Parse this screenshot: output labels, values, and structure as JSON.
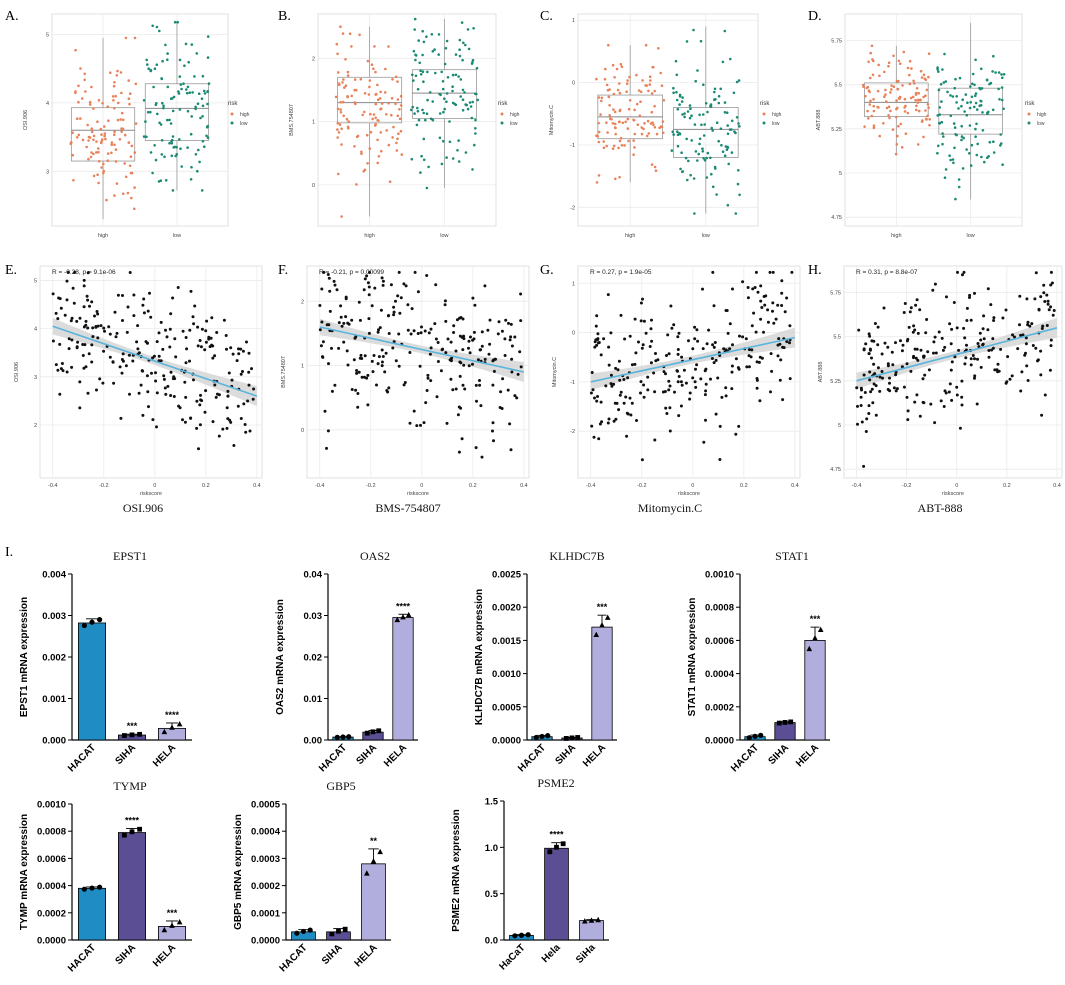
{
  "colors": {
    "high": "#E8825A",
    "low": "#1A8A74",
    "line": "#5AB4DC",
    "band": "#D3D3D3",
    "grid": "#EBEBEB",
    "bar1": "#1F8DC3",
    "bar2": "#5B4E94",
    "bar3": "#B1AEDD",
    "text": "#000000"
  },
  "legend": {
    "title": "risk",
    "high": "high",
    "low": "low"
  },
  "chart_data": [
    {
      "panel": "A.",
      "type": "box",
      "ylabel": "OSI.906",
      "categories": [
        "high",
        "low"
      ],
      "ylim": [
        2.2,
        5.3
      ],
      "yticks": [
        3,
        4,
        5
      ],
      "box": [
        {
          "q1": 3.15,
          "median": 3.6,
          "q3": 3.93,
          "wlo": 2.3,
          "whi": 4.95
        },
        {
          "q1": 3.45,
          "median": 3.92,
          "q3": 4.28,
          "wlo": 2.72,
          "whi": 5.18
        }
      ]
    },
    {
      "panel": "B.",
      "type": "box",
      "ylabel": "BMS.754807",
      "categories": [
        "high",
        "low"
      ],
      "ylim": [
        -0.65,
        2.7
      ],
      "yticks": [
        0,
        1,
        2
      ],
      "box": [
        {
          "q1": 0.98,
          "median": 1.3,
          "q3": 1.7,
          "wlo": -0.5,
          "whi": 2.5
        },
        {
          "q1": 1.05,
          "median": 1.45,
          "q3": 1.82,
          "wlo": -0.05,
          "whi": 2.62
        }
      ]
    },
    {
      "panel": "C.",
      "type": "box",
      "ylabel": "Mitomycin.C",
      "categories": [
        "high",
        "low"
      ],
      "ylim": [
        -2.3,
        1.1
      ],
      "yticks": [
        -2,
        -1,
        0,
        1
      ],
      "box": [
        {
          "q1": -0.9,
          "median": -0.55,
          "q3": -0.2,
          "wlo": -1.6,
          "whi": 0.6
        },
        {
          "q1": -1.2,
          "median": -0.75,
          "q3": -0.4,
          "wlo": -2.1,
          "whi": 0.9
        }
      ]
    },
    {
      "panel": "D.",
      "type": "box",
      "ylabel": "ABT.888",
      "categories": [
        "high",
        "low"
      ],
      "ylim": [
        4.7,
        5.9
      ],
      "yticks": [
        4.75,
        5.0,
        5.25,
        5.5,
        5.75
      ],
      "box": [
        {
          "q1": 5.32,
          "median": 5.4,
          "q3": 5.51,
          "wlo": 5.1,
          "whi": 5.72
        },
        {
          "q1": 5.22,
          "median": 5.33,
          "q3": 5.48,
          "wlo": 4.85,
          "whi": 5.85
        }
      ]
    },
    {
      "panel": "E.",
      "type": "scatter",
      "ylabel": "OSI.906",
      "xlabel": "riskscore",
      "stat": "R = -0.28, p = 9.1e-06",
      "title": "OSI.906",
      "xlim": [
        -0.45,
        0.42
      ],
      "ylim": [
        0.9,
        5.3
      ],
      "xticks": [
        -0.4,
        -0.2,
        0.0,
        0.2,
        0.4
      ],
      "yticks": [
        2,
        3,
        4,
        5
      ],
      "fit": [
        [
          -0.4,
          4.05
        ],
        [
          0.4,
          2.6
        ]
      ]
    },
    {
      "panel": "F.",
      "type": "scatter",
      "ylabel": "BMS.754807",
      "xlabel": "riskscore",
      "stat": "R = -0.21, p = 0.00099",
      "title": "BMS-754807",
      "xlim": [
        -0.45,
        0.42
      ],
      "ylim": [
        -0.75,
        2.55
      ],
      "xticks": [
        -0.4,
        -0.2,
        0.0,
        0.2,
        0.4
      ],
      "yticks": [
        0,
        1,
        2
      ],
      "fit": [
        [
          -0.4,
          1.6
        ],
        [
          0.4,
          0.9
        ]
      ]
    },
    {
      "panel": "G.",
      "type": "scatter",
      "ylabel": "Mitomycin.C",
      "xlabel": "riskscore",
      "stat": "R = 0.27, p = 1.9e-05",
      "title": "Mitomycin.C",
      "xlim": [
        -0.45,
        0.42
      ],
      "ylim": [
        -2.95,
        1.35
      ],
      "xticks": [
        -0.4,
        -0.2,
        0.0,
        0.2,
        0.4
      ],
      "yticks": [
        -2,
        -1,
        0,
        1
      ],
      "fit": [
        [
          -0.4,
          -1.0
        ],
        [
          0.4,
          -0.1
        ]
      ]
    },
    {
      "panel": "H.",
      "type": "scatter",
      "ylabel": "ABT.888",
      "xlabel": "riskscore",
      "stat": "R = 0.31, p = 8.8e-07",
      "title": "ABT-888",
      "xlim": [
        -0.45,
        0.42
      ],
      "ylim": [
        4.7,
        5.9
      ],
      "xticks": [
        -0.4,
        -0.2,
        0.0,
        0.2,
        0.4
      ],
      "yticks": [
        4.75,
        5.0,
        5.25,
        5.5,
        5.75
      ],
      "fit": [
        [
          -0.4,
          5.25
        ],
        [
          0.4,
          5.55
        ]
      ]
    },
    {
      "panel": "I.",
      "type": "bar",
      "title": "EPST1",
      "ylabel": "EPST1 mRNA expression",
      "categories": [
        "HACAT",
        "SIHA",
        "HELA"
      ],
      "values": [
        0.00282,
        0.00012,
        0.00028
      ],
      "err": [
        0.0001,
        2e-05,
        0.00013
      ],
      "sig": [
        "",
        "***",
        "****"
      ],
      "ylim": [
        0,
        0.004
      ],
      "yticks": [
        "0.000",
        "0.001",
        "0.002",
        "0.003",
        "0.004"
      ]
    },
    {
      "panel": "",
      "type": "bar",
      "title": "OAS2",
      "ylabel": "OAS2 mRNA expression",
      "categories": [
        "HACAT",
        "SIHA",
        "HELA"
      ],
      "values": [
        0.0007,
        0.0019,
        0.0295
      ],
      "err": [
        0.0001,
        0.0004,
        0.0008
      ],
      "sig": [
        "",
        "",
        "****"
      ],
      "ylim": [
        0,
        0.04
      ],
      "yticks": [
        "0.00",
        "0.01",
        "0.02",
        "0.03",
        "0.04"
      ]
    },
    {
      "panel": "",
      "type": "bar",
      "title": "KLHDC7B",
      "ylabel": "KLHDC7B mRNA expression",
      "categories": [
        "HACAT",
        "SIHA",
        "HELA"
      ],
      "values": [
        5e-05,
        3e-05,
        0.0017
      ],
      "err": [
        2e-05,
        1e-05,
        0.00018
      ],
      "sig": [
        "",
        "",
        "***"
      ],
      "ylim": [
        0,
        0.0025
      ],
      "yticks": [
        "0.0000",
        "0.0005",
        "0.0010",
        "0.0015",
        "0.0020",
        "0.0025"
      ]
    },
    {
      "panel": "",
      "type": "bar",
      "title": "STAT1",
      "ylabel": "STAT1 mRNA expression",
      "categories": [
        "HACAT",
        "SIHA",
        "HELA"
      ],
      "values": [
        2e-05,
        0.000105,
        0.0006
      ],
      "err": [
        1e-05,
        5e-06,
        8e-05
      ],
      "sig": [
        "",
        "",
        "***"
      ],
      "ylim": [
        0,
        0.001
      ],
      "yticks": [
        "0.0000",
        "0.0002",
        "0.0004",
        "0.0006",
        "0.0008",
        "0.0010"
      ]
    },
    {
      "panel": "",
      "type": "bar",
      "title": "TYMP",
      "ylabel": "TYMP mRNA expression",
      "categories": [
        "HACAT",
        "SIHA",
        "HELA"
      ],
      "values": [
        0.00038,
        0.00079,
        0.0001
      ],
      "err": [
        1e-05,
        3e-05,
        4e-05
      ],
      "sig": [
        "",
        "****",
        "***"
      ],
      "ylim": [
        0,
        0.001
      ],
      "yticks": [
        "0.0000",
        "0.0002",
        "0.0004",
        "0.0006",
        "0.0008",
        "0.0010"
      ]
    },
    {
      "panel": "",
      "type": "bar",
      "title": "GBP5",
      "ylabel": "GBP5 mRNA expression",
      "categories": [
        "HACAT",
        "SIHA",
        "HELA"
      ],
      "values": [
        3e-05,
        3e-05,
        0.00028
      ],
      "err": [
        8e-06,
        1.2e-05,
        5.5e-05
      ],
      "sig": [
        "",
        "",
        "**"
      ],
      "ylim": [
        0,
        0.0005
      ],
      "yticks": [
        "0.0000",
        "0.0001",
        "0.0002",
        "0.0003",
        "0.0004",
        "0.0005"
      ]
    },
    {
      "panel": "",
      "type": "bar",
      "title": "PSME2",
      "ylabel": "PSME2 mRNA expression",
      "categories": [
        "HaCaT",
        "Hela",
        "SiHa"
      ],
      "values": [
        0.05,
        0.99,
        0.21
      ],
      "err": [
        0.008,
        0.06,
        0.01
      ],
      "sig": [
        "",
        "****",
        ""
      ],
      "ylim": [
        0,
        1.5
      ],
      "yticks": [
        "0.0",
        "0.5",
        "1.0",
        "1.5"
      ]
    }
  ]
}
